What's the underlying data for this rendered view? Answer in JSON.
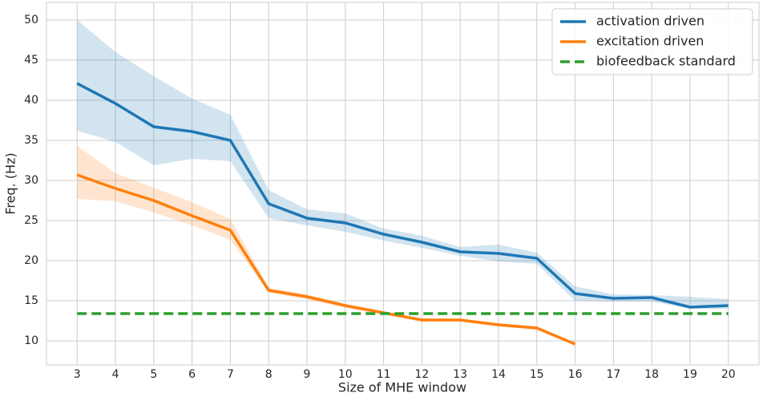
{
  "chart_data": {
    "type": "line",
    "xlabel": "Size of MHE window",
    "ylabel": "Freq. (Hz)",
    "x": [
      3,
      4,
      5,
      6,
      7,
      8,
      9,
      10,
      11,
      12,
      13,
      14,
      15,
      16,
      17,
      18,
      19,
      20
    ],
    "xlim": [
      2.2,
      20.8
    ],
    "xticks": [
      3,
      4,
      5,
      6,
      7,
      8,
      9,
      10,
      11,
      12,
      13,
      14,
      15,
      16,
      17,
      18,
      19,
      20
    ],
    "ylim": [
      7.0,
      52.2
    ],
    "yticks": [
      10,
      15,
      20,
      25,
      30,
      35,
      40,
      45,
      50
    ],
    "grid": true,
    "legend": "upper right",
    "series": [
      {
        "name": "activation driven",
        "color": "#1f77b4",
        "style": "solid",
        "values": [
          42.1,
          39.6,
          36.7,
          36.1,
          35.0,
          27.1,
          25.3,
          24.7,
          23.3,
          22.3,
          21.1,
          20.9,
          20.3,
          15.9,
          15.3,
          15.4,
          14.2,
          14.4
        ],
        "lower": [
          36.2,
          34.8,
          31.9,
          32.7,
          32.4,
          25.3,
          24.4,
          23.6,
          22.5,
          21.6,
          20.6,
          19.9,
          19.6,
          15.0,
          14.9,
          14.9,
          14.0,
          14.0
        ],
        "upper": [
          50.0,
          46.0,
          43.0,
          40.2,
          38.2,
          28.8,
          26.4,
          25.9,
          24.0,
          23.1,
          21.7,
          22.0,
          21.0,
          16.8,
          15.8,
          15.7,
          15.5,
          15.2
        ]
      },
      {
        "name": "excitation driven",
        "color": "#ff7f0e",
        "style": "solid",
        "values": [
          30.7,
          29.0,
          27.5,
          25.6,
          23.8,
          16.3,
          15.5,
          14.4,
          13.5,
          12.6,
          12.6,
          12.0,
          11.6,
          9.6,
          null,
          null,
          null,
          null
        ],
        "lower": [
          27.7,
          27.4,
          26.0,
          24.4,
          22.6,
          16.0,
          15.2,
          14.1,
          13.3,
          12.4,
          12.4,
          11.8,
          11.4,
          9.5,
          null,
          null,
          null,
          null
        ],
        "upper": [
          34.3,
          30.9,
          29.1,
          27.3,
          25.2,
          16.6,
          15.8,
          14.6,
          13.7,
          12.8,
          12.8,
          12.2,
          11.8,
          9.7,
          null,
          null,
          null,
          null
        ]
      },
      {
        "name": "biofeedback standard",
        "color": "#2ca02c",
        "style": "dashed",
        "values": [
          13.4,
          13.4,
          13.4,
          13.4,
          13.4,
          13.4,
          13.4,
          13.4,
          13.4,
          13.4,
          13.4,
          13.4,
          13.4,
          13.4,
          13.4,
          13.4,
          13.4,
          13.4
        ]
      }
    ]
  }
}
